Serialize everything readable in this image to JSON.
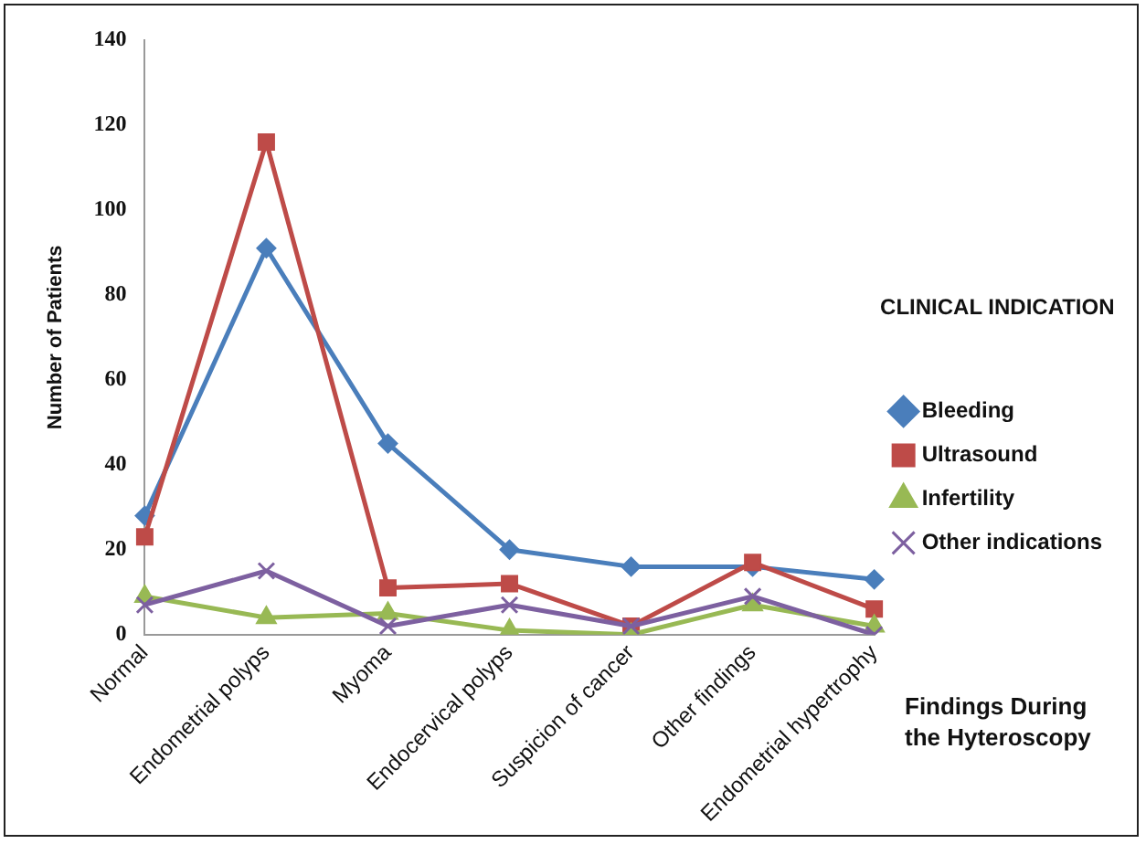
{
  "chart_data": {
    "type": "line",
    "xlabel": "Findings During the Hyteroscopy",
    "ylabel": "Number of Patients",
    "legend_title": "CLINICAL INDICATION",
    "legend": "right",
    "grid": false,
    "line_style": "solid",
    "categories": [
      "Normal",
      "Endometrial polyps",
      "Myoma",
      "Endocervical polyps",
      "Suspicion of cancer",
      "Other findings",
      "Endometrial hypertrophy"
    ],
    "ylim": [
      0,
      140
    ],
    "yticks": [
      0,
      20,
      40,
      60,
      80,
      100,
      120,
      140
    ],
    "series": [
      {
        "name": "Bleeding",
        "color": "#4a7ebb",
        "marker": "diamond",
        "values": [
          28,
          91,
          45,
          20,
          16,
          16,
          13
        ]
      },
      {
        "name": "Ultrasound",
        "color": "#be4b48",
        "marker": "square",
        "values": [
          23,
          116,
          11,
          12,
          2,
          17,
          6
        ]
      },
      {
        "name": "Infertility",
        "color": "#98b954",
        "marker": "triangle",
        "values": [
          9,
          4,
          5,
          1,
          0,
          7,
          2
        ]
      },
      {
        "name": "Other indications",
        "color": "#7d60a0",
        "marker": "cross",
        "values": [
          7,
          15,
          2,
          7,
          2,
          9,
          0
        ]
      }
    ]
  }
}
